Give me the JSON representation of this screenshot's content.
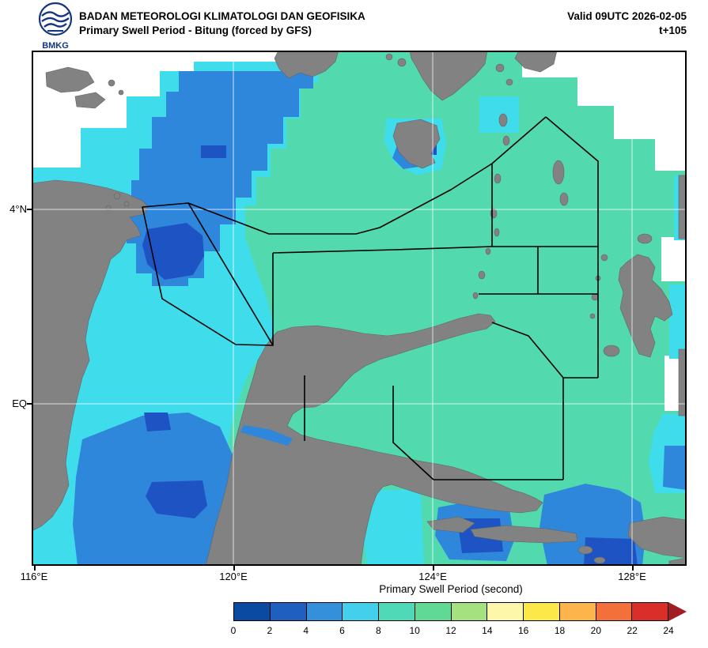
{
  "header": {
    "line1": "BADAN METEOROLOGI KLIMATOLOGI DAN GEOFISIKA",
    "line2": "Primary Swell Period - Bitung (forced by GFS)",
    "valid": "Valid 09UTC 2026-02-05",
    "step": "t+105",
    "logo_text": "BMKG"
  },
  "map": {
    "x_ticks": [
      "116°E",
      "120°E",
      "124°E",
      "128°E"
    ],
    "y_ticks": [
      "4°N",
      "EQ"
    ]
  },
  "colorbar": {
    "title": "Primary Swell Period (second)",
    "tick_labels": [
      "0",
      "2",
      "4",
      "6",
      "8",
      "10",
      "12",
      "14",
      "16",
      "18",
      "20",
      "22",
      "24"
    ],
    "segment_colors": [
      "#0b4aa2",
      "#1e5fc0",
      "#3590dc",
      "#44d0ec",
      "#4fd9b6",
      "#5fd993",
      "#a3e27e",
      "#fdf8a8",
      "#fde84a",
      "#fdb44a",
      "#f4703a",
      "#da2f28"
    ],
    "arrow_color": "#a01d23"
  },
  "palette": {
    "land": "#828282",
    "land_stroke": "#636363",
    "no_data": "#ffffff",
    "sea_8_10": "#52d9ae",
    "sea_6_8": "#3fdcec",
    "sea_4_6": "#2f87dc",
    "sea_2_4": "#1d53c2",
    "zone_line": "#000000",
    "grid_line": "#ffffff",
    "logo_blue": "#16357f"
  }
}
